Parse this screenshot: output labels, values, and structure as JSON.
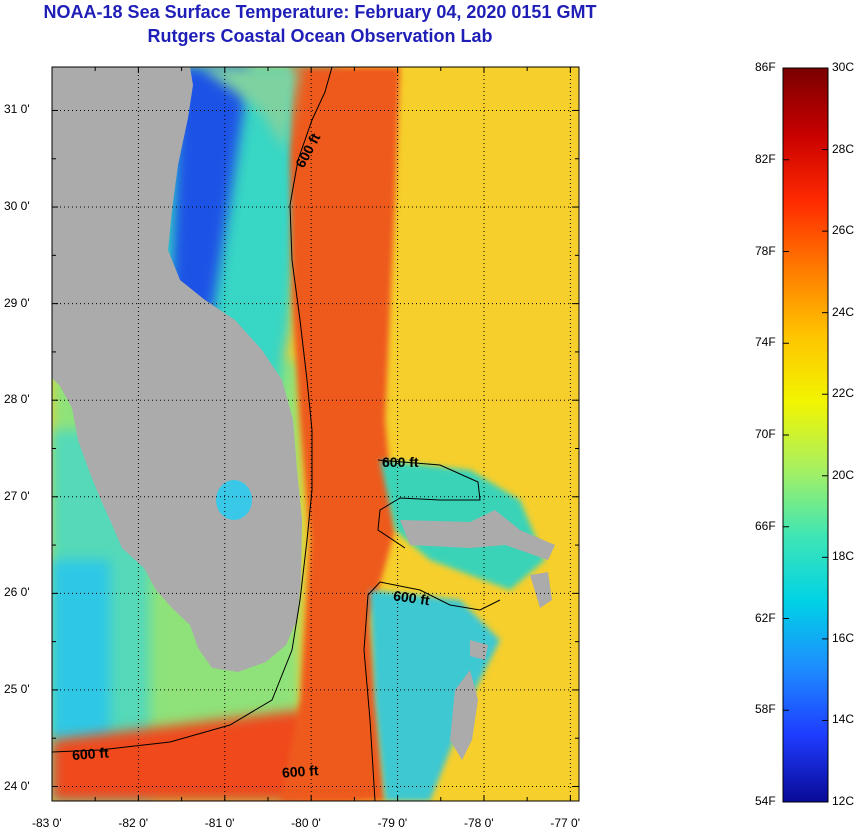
{
  "title": {
    "line1": "NOAA-18 Sea Surface Temperature:  February 04, 2020 0151 GMT",
    "line2": "Rutgers Coastal Ocean Observation Lab"
  },
  "map": {
    "latitude_ticks": [
      {
        "value": 31,
        "label": "31 0'"
      },
      {
        "value": 30,
        "label": "30 0'"
      },
      {
        "value": 29,
        "label": "29 0'"
      },
      {
        "value": 28,
        "label": "28 0'"
      },
      {
        "value": 27,
        "label": "27 0'"
      },
      {
        "value": 26,
        "label": "26 0'"
      },
      {
        "value": 25,
        "label": "25 0'"
      },
      {
        "value": 24,
        "label": "24 0'"
      }
    ],
    "longitude_ticks": [
      {
        "value": -83,
        "label": "-83 0'"
      },
      {
        "value": -82,
        "label": "-82 0'"
      },
      {
        "value": -81,
        "label": "-81 0'"
      },
      {
        "value": -80,
        "label": "-80 0'"
      },
      {
        "value": -79,
        "label": "-79 0'"
      },
      {
        "value": -78,
        "label": "-78 0'"
      },
      {
        "value": -77,
        "label": "-77 0'"
      }
    ],
    "lat_range": [
      23.85,
      31.45
    ],
    "lon_range": [
      -83.0,
      -76.9
    ],
    "contour_labels": [
      "600 ft",
      "600 ft",
      "600 ft",
      "600 ft",
      "600 ft"
    ],
    "colors": {
      "land": "#ababab",
      "gulf_stream": "#ee5a1c",
      "open_ocean": "#f6cf2c",
      "shelf": "#4fd4c4",
      "gulf_shelf": "#9fe66e",
      "cold_coast": "#1838e0",
      "axis": "#000000"
    }
  },
  "colorbar": {
    "fahrenheit_labels": [
      "86F",
      "82F",
      "78F",
      "74F",
      "70F",
      "66F",
      "62F",
      "58F",
      "54F"
    ],
    "celsius_labels": [
      "30C",
      "28C",
      "26C",
      "24C",
      "22C",
      "20C",
      "18C",
      "16C",
      "14C",
      "12C"
    ],
    "range_c": [
      12,
      30
    ],
    "range_f": [
      54,
      86
    ],
    "gradient_top_to_bottom": [
      "#7a0000",
      "#c80000",
      "#ff2a00",
      "#ff7a00",
      "#ffc400",
      "#f2f500",
      "#a8f060",
      "#3fe6b4",
      "#00d2e6",
      "#1e8cff",
      "#1e3cff",
      "#0a0a96"
    ]
  }
}
